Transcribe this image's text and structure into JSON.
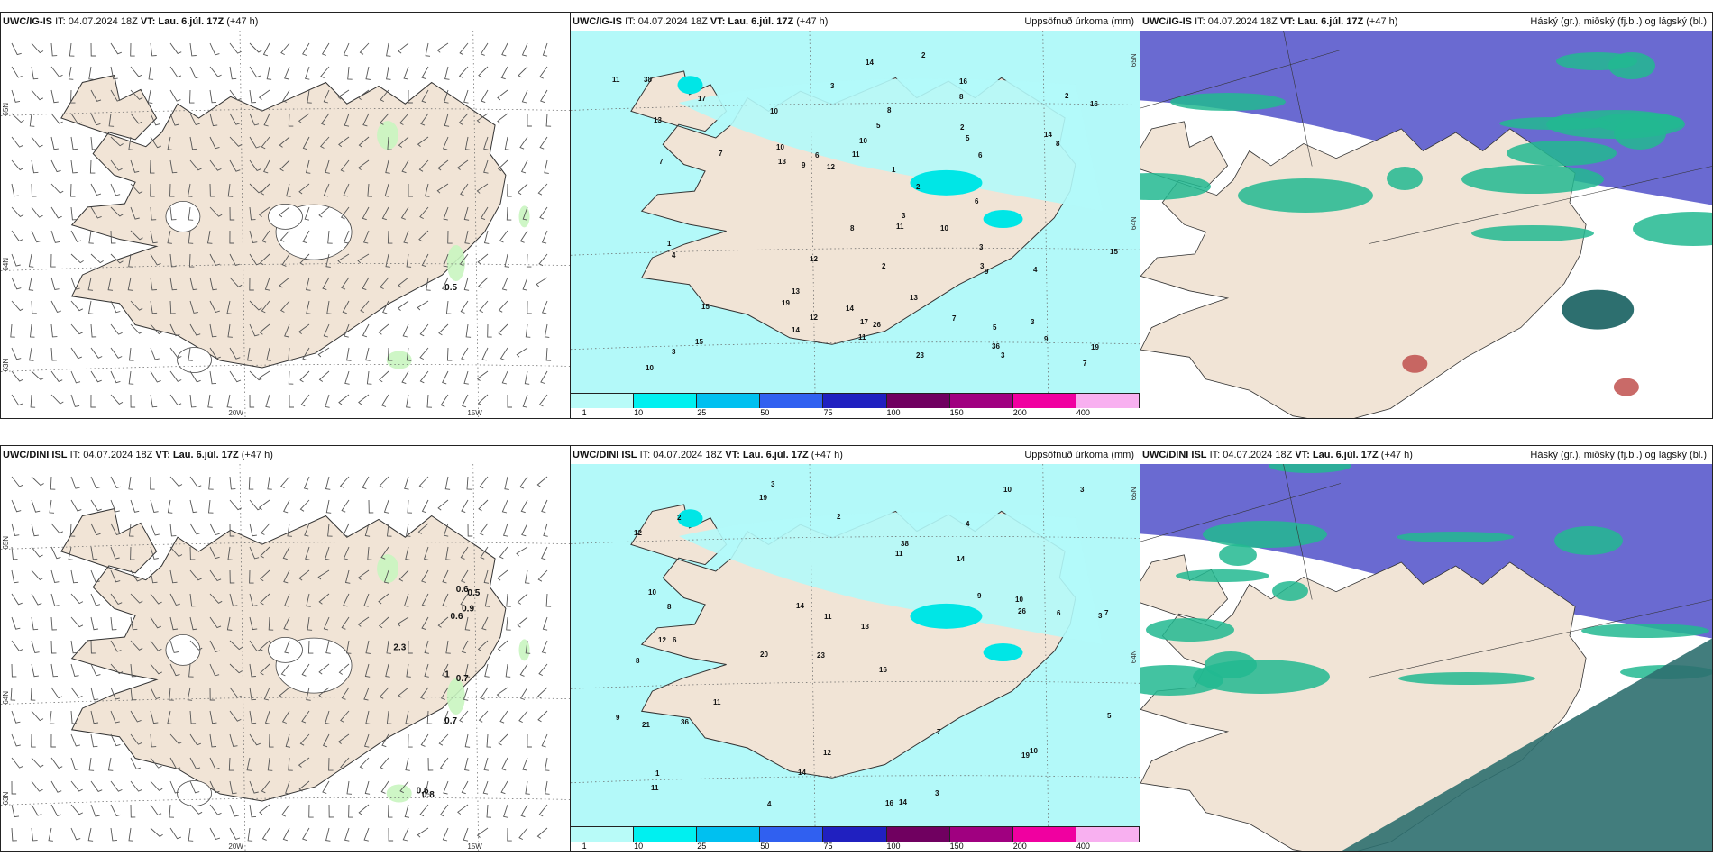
{
  "panels": [
    {
      "id": "p1",
      "model": "UWC/IG-IS",
      "it": "IT: 04.07.2024 18Z",
      "vt_label": "VT:",
      "vt": "Lau. 6.júl. 17Z",
      "lead": "(+47 h)",
      "right_title": "",
      "type": "wind",
      "wind_labels": [
        "0.5"
      ],
      "lat_labels": [
        "65N",
        "64N",
        "63N"
      ],
      "lon_labels": [
        "20W",
        "15W"
      ]
    },
    {
      "id": "p2",
      "model": "UWC/IG-IS",
      "it": "IT: 04.07.2024 18Z",
      "vt_label": "VT:",
      "vt": "Lau. 6.júl. 17Z",
      "lead": "(+47 h)",
      "right_title": "Uppsöfnuð úrkoma (mm)",
      "type": "precip",
      "values": [
        "3",
        "4",
        "3",
        "2",
        "3",
        "2",
        "3",
        "16",
        "5",
        "19",
        "7",
        "13",
        "12",
        "14",
        "7",
        "10",
        "3",
        "4",
        "8",
        "16",
        "11",
        "15",
        "11",
        "10",
        "9",
        "8",
        "6",
        "5",
        "8",
        "13",
        "9",
        "12",
        "8",
        "10",
        "11",
        "23",
        "17",
        "6",
        "7",
        "14",
        "7",
        "13",
        "10",
        "14",
        "6",
        "9",
        "10",
        "26",
        "15",
        "19",
        "13",
        "11",
        "38",
        "36",
        "15",
        "17",
        "14",
        "12",
        "2",
        "3",
        "1",
        "2",
        "5",
        "2",
        "3",
        "1"
      ],
      "lat_labels": [
        "65N",
        "64N"
      ]
    },
    {
      "id": "p3",
      "model": "UWC/IG-IS",
      "it": "IT: 04.07.2024 18Z",
      "vt_label": "VT:",
      "vt": "Lau. 6.júl. 17Z",
      "lead": "(+47 h)",
      "right_title": "Háský (gr.), miðský (fj.bl.) og lágský (bl.)",
      "type": "cloud"
    },
    {
      "id": "p4",
      "model": "UWC/DINI ISL",
      "it": "IT: 04.07.2024 18Z",
      "vt_label": "VT:",
      "vt": "Lau. 6.júl. 17Z",
      "lead": "(+47 h)",
      "right_title": "",
      "type": "wind",
      "wind_labels": [
        "0.7",
        "0.6",
        "0.9",
        "0.5",
        "0.6",
        "2.3",
        "1",
        "0.7",
        "0.6",
        "0.8"
      ],
      "lat_labels": [
        "65N",
        "64N",
        "63N"
      ],
      "lon_labels": [
        "20W",
        "15W"
      ]
    },
    {
      "id": "p5",
      "model": "UWC/DINI ISL",
      "it": "IT: 04.07.2024 18Z",
      "vt_label": "VT:",
      "vt": "Lau. 6.júl. 17Z",
      "lead": "(+47 h)",
      "right_title": "Uppsöfnuð úrkoma (mm)",
      "type": "precip",
      "values": [
        "3",
        "4",
        "3",
        "23",
        "16",
        "6",
        "12",
        "14",
        "8",
        "11",
        "13",
        "11",
        "19",
        "20",
        "16",
        "14",
        "12",
        "10",
        "9",
        "11",
        "8",
        "12",
        "7",
        "6",
        "9",
        "10",
        "11",
        "26",
        "10",
        "21",
        "19",
        "38",
        "36",
        "14",
        "7",
        "5",
        "10",
        "14",
        "3",
        "2",
        "1",
        "4",
        "3",
        "2"
      ],
      "lat_labels": [
        "65N",
        "64N"
      ]
    },
    {
      "id": "p6",
      "model": "UWC/DINI ISL",
      "it": "IT: 04.07.2024 18Z",
      "vt_label": "VT:",
      "vt": "Lau. 6.júl. 17Z",
      "lead": "(+47 h)",
      "right_title": "Háský (gr.), miðský (fj.bl.) og lágský (bl.)",
      "type": "cloud"
    }
  ],
  "legend": {
    "colors": [
      "#b8fbf8",
      "#00f0f0",
      "#00c0f0",
      "#3060f0",
      "#2020c0",
      "#700060",
      "#a00080",
      "#f000a0",
      "#f8b0f0"
    ],
    "ticks": [
      "1",
      "10",
      "25",
      "50",
      "75",
      "100",
      "150",
      "200",
      "400"
    ]
  },
  "colors": {
    "land": "#f1e4d6",
    "precip_light": "#b3f9f9",
    "wind_green": "#c9f5c0",
    "cloud_high": "#5a5acc",
    "cloud_mid": "#22b890",
    "cloud_low": "#2d6f6f"
  }
}
